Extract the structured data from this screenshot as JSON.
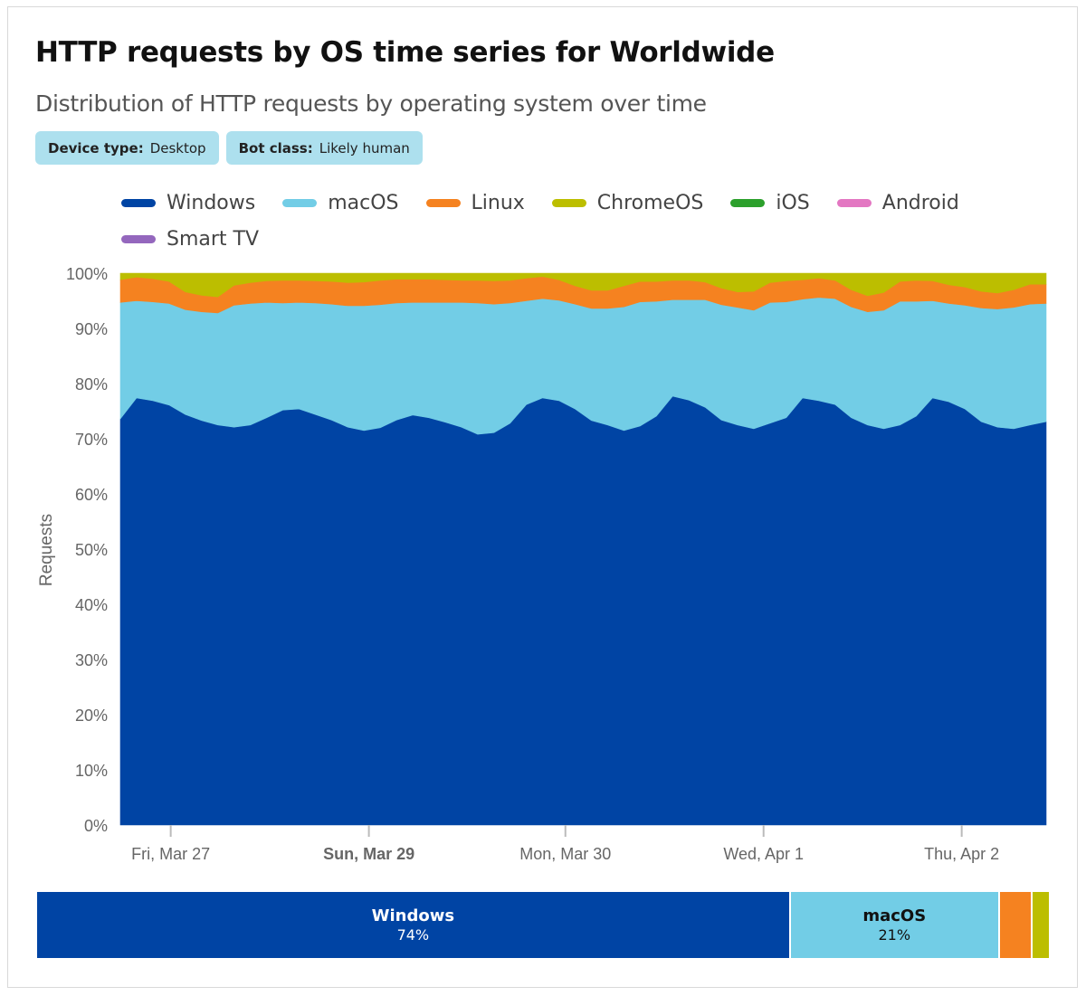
{
  "card": {
    "title": "HTTP requests by OS time series for Worldwide",
    "subtitle": "Distribution of HTTP requests by operating system over time",
    "filters": [
      {
        "key": "Device type:",
        "value": "Desktop"
      },
      {
        "key": "Bot class:",
        "value": "Likely human"
      }
    ]
  },
  "legend": [
    {
      "label": "Windows",
      "color": "#0044a4"
    },
    {
      "label": "macOS",
      "color": "#72cde6"
    },
    {
      "label": "Linux",
      "color": "#f58220"
    },
    {
      "label": "ChromeOS",
      "color": "#bcbe00"
    },
    {
      "label": "iOS",
      "color": "#2ca02c"
    },
    {
      "label": "Android",
      "color": "#e377c2"
    },
    {
      "label": "Smart TV",
      "color": "#9467bd"
    }
  ],
  "summary": [
    {
      "label": "Windows",
      "value": "74%",
      "share": 74.2,
      "color": "#0044a4",
      "text_color": "#ffffff"
    },
    {
      "label": "macOS",
      "value": "21%",
      "share": 20.6,
      "color": "#72cde6",
      "text_color": "#111111"
    },
    {
      "label": "",
      "value": "",
      "share": 3.2,
      "color": "#f58220",
      "text_color": "#111111"
    },
    {
      "label": "",
      "value": "",
      "share": 1.8,
      "color": "#bcbe00",
      "text_color": "#111111"
    }
  ],
  "chart_data": {
    "type": "area",
    "stacked": true,
    "title": "HTTP requests by OS time series for Worldwide",
    "ylabel": "Requests",
    "xlabel": "",
    "ylim": [
      0,
      100
    ],
    "y_ticks": [
      "0%",
      "10%",
      "20%",
      "30%",
      "40%",
      "50%",
      "60%",
      "70%",
      "80%",
      "90%",
      "100%"
    ],
    "y_tick_values": [
      0,
      10,
      20,
      30,
      40,
      50,
      60,
      70,
      80,
      90,
      100
    ],
    "x_ticks": [
      {
        "label": "Fri, Mar 27",
        "index": 3.1,
        "bold": false
      },
      {
        "label": "Sun, Mar 29",
        "index": 15.3,
        "bold": true
      },
      {
        "label": "Mon, Mar 30",
        "index": 27.4,
        "bold": false
      },
      {
        "label": "Wed, Apr 1",
        "index": 39.6,
        "bold": false
      },
      {
        "label": "Thu, Apr 2",
        "index": 51.8,
        "bold": false
      }
    ],
    "x_count": 58,
    "grid": false,
    "legend_position": "top",
    "series": [
      {
        "name": "Windows",
        "color": "#0044a4",
        "values": [
          73.6,
          77.4,
          76.9,
          76.1,
          74.4,
          73.3,
          72.5,
          72.1,
          72.5,
          73.8,
          75.2,
          75.4,
          74.4,
          73.4,
          72.1,
          71.5,
          72.0,
          73.4,
          74.3,
          73.8,
          73.0,
          72.1,
          70.8,
          71.1,
          72.8,
          76.2,
          77.4,
          76.9,
          75.4,
          73.3,
          72.5,
          71.5,
          72.3,
          74.1,
          77.7,
          77.0,
          75.7,
          73.4,
          72.5,
          71.8,
          72.8,
          73.8,
          77.4,
          76.9,
          76.2,
          73.8,
          72.5,
          71.8,
          72.5,
          74.1,
          77.4,
          76.7,
          75.4,
          73.1,
          72.1,
          71.8,
          72.5,
          73.1
        ]
      },
      {
        "name": "macOS",
        "color": "#72cde6",
        "values": [
          21.1,
          17.6,
          17.9,
          18.4,
          19.0,
          19.7,
          20.3,
          22.1,
          22.0,
          20.9,
          19.4,
          19.3,
          20.2,
          21.0,
          22.0,
          22.6,
          22.3,
          21.2,
          20.4,
          20.9,
          21.7,
          22.6,
          23.8,
          23.3,
          21.8,
          18.8,
          18.0,
          18.2,
          19.0,
          20.3,
          21.1,
          22.4,
          22.5,
          20.8,
          17.5,
          18.2,
          19.5,
          20.9,
          21.3,
          21.5,
          21.9,
          21.0,
          17.9,
          18.7,
          19.2,
          20.1,
          20.5,
          21.5,
          22.4,
          20.8,
          17.6,
          17.8,
          18.8,
          20.6,
          21.4,
          22.0,
          21.9,
          21.4
        ]
      },
      {
        "name": "Linux",
        "color": "#f58220",
        "values": [
          4.1,
          4.3,
          4.2,
          4.0,
          3.2,
          3.0,
          2.9,
          3.6,
          3.8,
          3.9,
          4.1,
          4.0,
          4.0,
          4.1,
          4.2,
          4.3,
          4.4,
          4.3,
          4.2,
          4.2,
          4.1,
          4.0,
          4.1,
          4.2,
          4.1,
          4.1,
          4.0,
          3.7,
          3.3,
          3.3,
          3.3,
          3.8,
          3.7,
          3.6,
          3.5,
          3.5,
          3.2,
          3.0,
          2.8,
          3.4,
          3.6,
          3.8,
          3.5,
          3.5,
          3.3,
          3.1,
          2.9,
          3.2,
          3.6,
          3.8,
          3.6,
          3.4,
          3.3,
          3.0,
          2.9,
          3.2,
          3.6,
          3.5
        ]
      },
      {
        "name": "ChromeOS",
        "color": "#bcbe00",
        "values": [
          1.2,
          0.7,
          1.0,
          1.5,
          3.4,
          4.0,
          4.3,
          2.2,
          1.7,
          1.4,
          1.3,
          1.3,
          1.4,
          1.5,
          1.7,
          1.6,
          1.3,
          1.1,
          1.1,
          1.1,
          1.2,
          1.3,
          1.3,
          1.4,
          1.3,
          0.9,
          0.6,
          1.2,
          2.3,
          3.1,
          3.1,
          2.3,
          1.5,
          1.5,
          1.3,
          1.3,
          1.6,
          2.7,
          3.4,
          3.3,
          1.7,
          1.4,
          1.2,
          0.9,
          1.3,
          3.0,
          4.1,
          3.5,
          1.5,
          1.3,
          1.4,
          2.1,
          2.5,
          3.3,
          3.6,
          3.0,
          2.0,
          2.0
        ]
      },
      {
        "name": "iOS",
        "color": "#2ca02c",
        "values": []
      },
      {
        "name": "Android",
        "color": "#e377c2",
        "values": []
      },
      {
        "name": "Smart TV",
        "color": "#9467bd",
        "values": []
      }
    ],
    "summary_shares": {
      "Windows": 74,
      "macOS": 21
    }
  }
}
